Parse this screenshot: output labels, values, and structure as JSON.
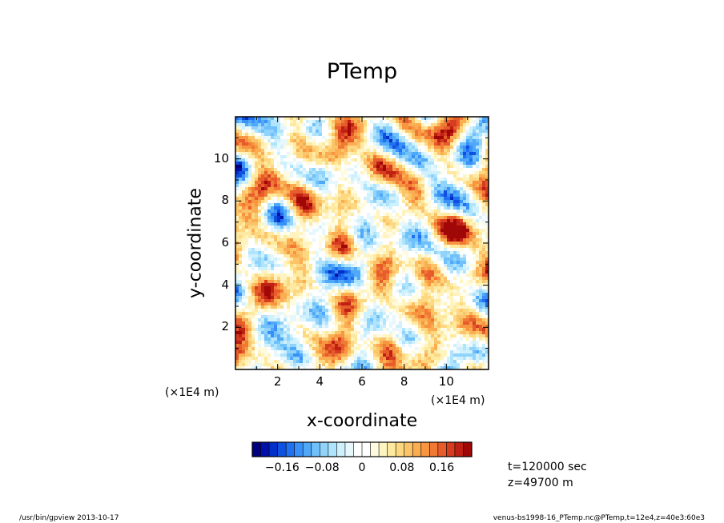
{
  "chart_data": {
    "type": "heatmap",
    "title": "PTemp",
    "xlabel": "x-coordinate",
    "ylabel": "y-coordinate",
    "xlim": [
      0,
      12
    ],
    "ylim": [
      0,
      12
    ],
    "x_ticks": [
      2,
      4,
      6,
      8,
      10
    ],
    "y_ticks": [
      2,
      4,
      6,
      8,
      10
    ],
    "x_tick_labels": [
      "2",
      "4",
      "6",
      "8",
      "10"
    ],
    "y_tick_labels": [
      "2",
      "4",
      "6",
      "8",
      "10"
    ],
    "x_scale_label": "(×1E4 m)",
    "y_scale_label": "(×1E4 m)",
    "colorbar": {
      "range": [
        -0.22,
        0.22
      ],
      "tick_values": [
        -0.16,
        -0.08,
        0,
        0.08,
        0.16
      ],
      "tick_labels": [
        "−0.16",
        "−0.08",
        "0",
        "0.08",
        "0.16"
      ],
      "colors": [
        "#000080",
        "#0010a8",
        "#0030c8",
        "#1050e0",
        "#2070f0",
        "#3890f8",
        "#50a8f8",
        "#70c0fa",
        "#90d4fb",
        "#b0e4fc",
        "#cff0fd",
        "#e6f8fe",
        "#ffffff",
        "#ffffff",
        "#fffbe0",
        "#fff4c0",
        "#fee9a0",
        "#fdd880",
        "#fcc468",
        "#fbad52",
        "#f89540",
        "#f07a34",
        "#e65c2a",
        "#d63c20",
        "#bf2014",
        "#a00808"
      ]
    },
    "annotations": [
      "t=120000 sec",
      "z=49700 m"
    ]
  },
  "footer": {
    "left": "/usr/bin/gpview   2013-10-17",
    "right": "venus-bs1998-16_PTemp.nc@PTemp,t=12e4,z=40e3:60e3"
  }
}
